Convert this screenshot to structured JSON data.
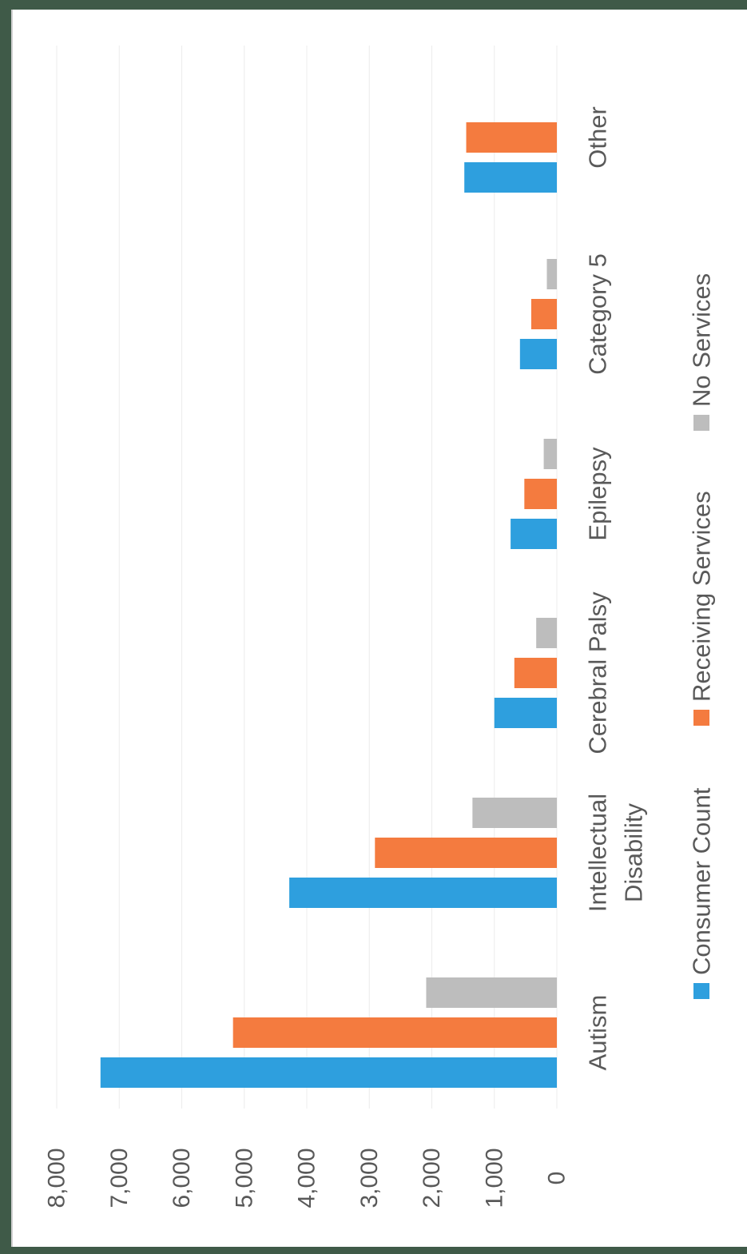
{
  "chart_data": {
    "type": "bar",
    "orientation": "rotated-90-clockwise",
    "categories": [
      [
        "Autism"
      ],
      [
        "Intellectual",
        "Disability"
      ],
      [
        "Cerebral Palsy"
      ],
      [
        "Epilepsy"
      ],
      [
        "Category 5"
      ],
      [
        "Other"
      ]
    ],
    "series": [
      {
        "name": "Consumer Count",
        "color": "#2e9fde",
        "values": [
          7300,
          4280,
          1000,
          740,
          590,
          1480
        ]
      },
      {
        "name": "Receiving Services",
        "color": "#f47b3f",
        "values": [
          5180,
          2910,
          680,
          520,
          410,
          1450
        ]
      },
      {
        "name": "No Services",
        "color": "#bdbdbd",
        "values": [
          2090,
          1350,
          330,
          210,
          160,
          null
        ]
      }
    ],
    "ylim": [
      0,
      8000
    ],
    "ticks": [
      "0",
      "1,000",
      "2,000",
      "3,000",
      "4,000",
      "5,000",
      "6,000",
      "7,000",
      "8,000"
    ],
    "title": "",
    "xlabel": "",
    "ylabel": "",
    "grid": true,
    "legend_position": "bottom"
  }
}
